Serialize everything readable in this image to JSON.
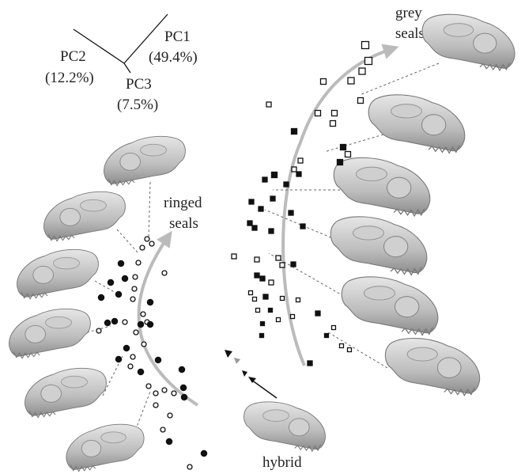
{
  "axes_legend": {
    "pc1": {
      "label": "PC1",
      "variance": "(49.4%)"
    },
    "pc2": {
      "label": "PC2",
      "variance": "(12.2%)"
    },
    "pc3": {
      "label": "PC3",
      "variance": "(7.5%)"
    }
  },
  "groups": [
    {
      "label_lines": [
        "ringed",
        "seals"
      ]
    },
    {
      "label_lines": [
        "grey",
        "seals"
      ]
    }
  ],
  "hybrid_label": "hybrid"
}
